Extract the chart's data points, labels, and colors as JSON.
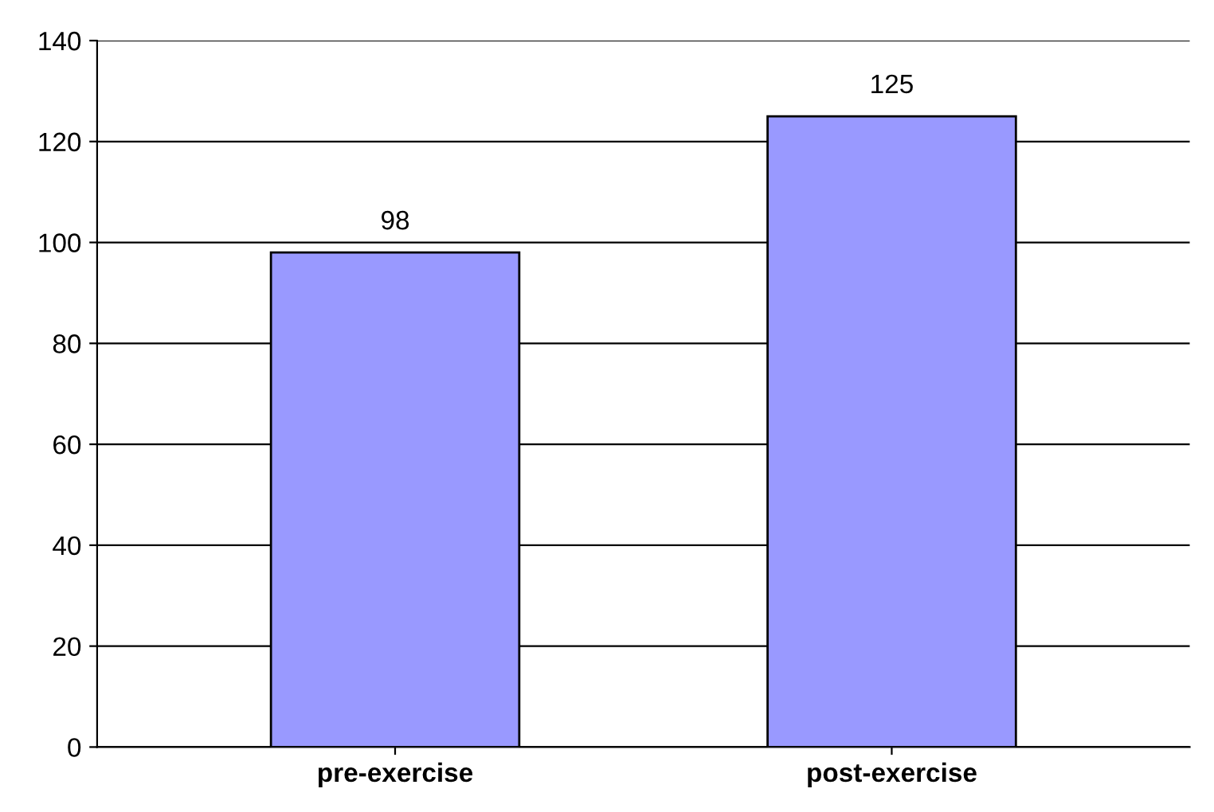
{
  "chart_data": {
    "type": "bar",
    "categories": [
      "pre-exercise",
      "post-exercise"
    ],
    "values": [
      98,
      125
    ],
    "color": "#9999ff",
    "ylim": [
      0,
      140
    ],
    "yticks": [
      0,
      20,
      40,
      60,
      80,
      100,
      120,
      140
    ],
    "grid": "y",
    "data_labels": true
  }
}
